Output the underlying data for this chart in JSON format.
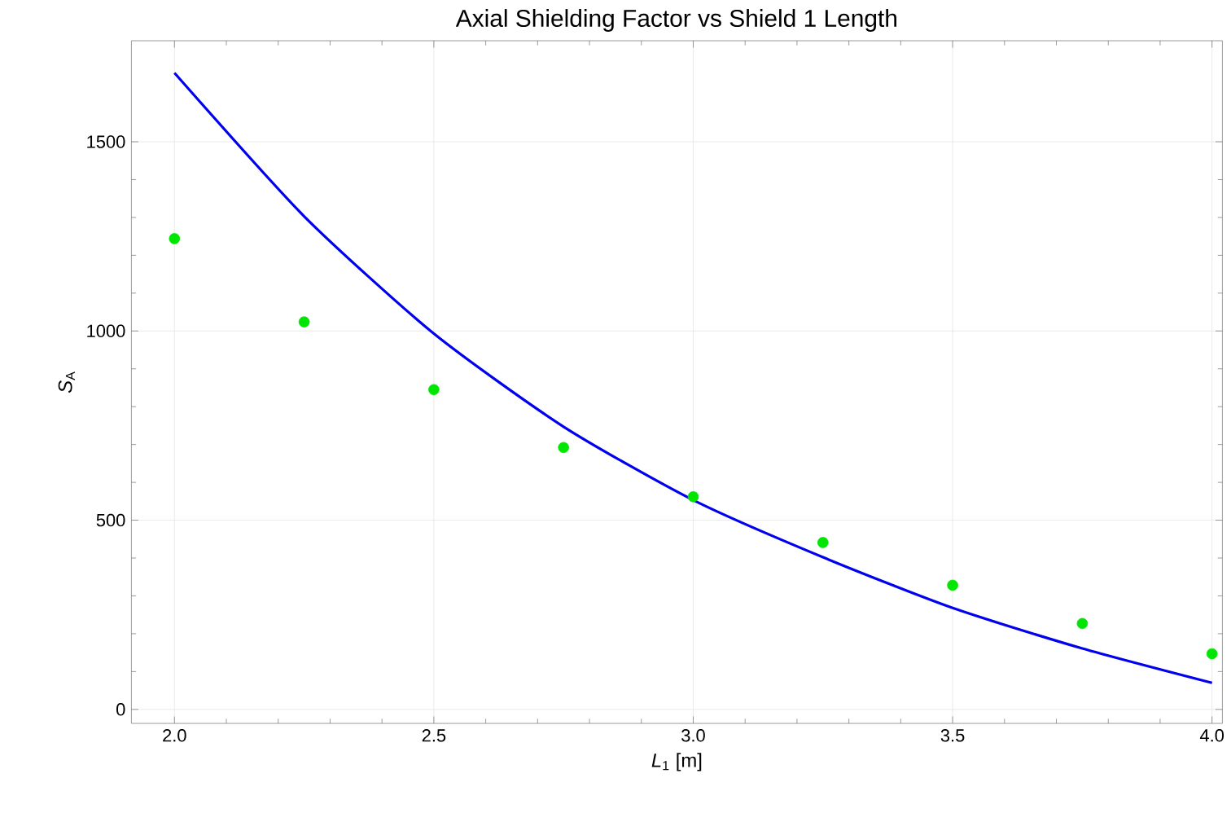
{
  "chart_data": {
    "type": "scatter",
    "title": "Axial Shielding Factor vs Shield 1 Length",
    "xlabel": "*L*$_{1}$ [m]",
    "ylabel": "*S*$_{A}$",
    "x": [
      2.0,
      2.25,
      2.5,
      2.75,
      3.0,
      3.25,
      3.5,
      3.75,
      4.0
    ],
    "series": [
      {
        "color": "#00e600",
        "marker": "circle",
        "values": [
          1244,
          1024,
          845,
          692,
          562,
          441,
          328,
          227,
          147
        ]
      },
      {
        "type": "line",
        "color": "#0000ee",
        "line_style": "solid",
        "x": [
          2.0,
          2.25,
          2.5,
          2.75,
          3.0,
          3.25,
          3.5,
          3.75,
          4.0
        ],
        "values": [
          1682,
          1303,
          993,
          747,
          553,
          402,
          268,
          161,
          70
        ]
      }
    ],
    "xlim": [
      1.917,
      4.02
    ],
    "ylim": [
      -37,
      1767
    ],
    "xticks": [
      {
        "value": 2.0,
        "label": "2.0"
      },
      {
        "value": 2.5,
        "label": "2.5"
      },
      {
        "value": 3.0,
        "label": "3.0"
      },
      {
        "value": 3.5,
        "label": "3.5"
      },
      {
        "value": 4.0,
        "label": "4.0"
      }
    ],
    "yticks": [
      0,
      500,
      1000,
      1500
    ],
    "grid": true
  }
}
